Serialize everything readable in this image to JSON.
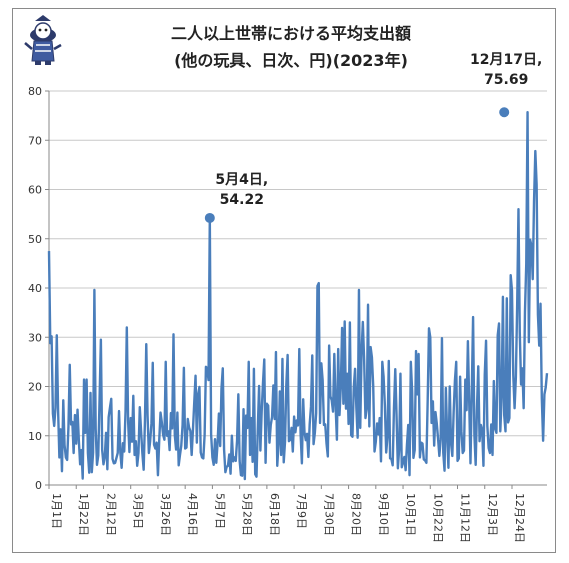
{
  "chart_data": {
    "type": "line",
    "title": "二人以上世帯における平均支出額",
    "subtitle": "(他の玩具、日次、円)(2023年)",
    "xlabel": "",
    "ylabel": "",
    "ylim": [
      0,
      80
    ],
    "yticks": [
      0,
      10,
      20,
      30,
      40,
      50,
      60,
      70,
      80
    ],
    "grid": "horizontal",
    "line_color": "#4a7ebb",
    "x_tick_labels": [
      "1月1日",
      "1月22日",
      "2月12日",
      "3月5日",
      "3月26日",
      "4月16日",
      "5月7日",
      "5月28日",
      "6月18日",
      "7月9日",
      "7月30日",
      "8月20日",
      "9月10日",
      "10月1日",
      "10月22日",
      "11月12日",
      "12月3日",
      "12月24日"
    ],
    "annotations": [
      {
        "day": 124,
        "value": 54.22,
        "line1": "5月4日,",
        "line2": "54.22"
      },
      {
        "day": 351,
        "value": 75.69,
        "line1": "12月17日,",
        "line2": "75.69"
      }
    ],
    "series": [
      {
        "values": [
          47.5,
          28.8,
          30.2,
          14.5,
          12.0,
          15.7,
          30.4,
          15.3,
          5.6,
          11.3,
          2.8,
          17.2,
          8.1,
          5.6,
          5.1,
          11.8,
          24.4,
          12.3,
          12.8,
          6.5,
          14.2,
          8.4,
          15.3,
          9.1,
          4.2,
          7.1,
          1.3,
          21.4,
          10.6,
          21.4,
          6.5,
          2.5,
          18.7,
          2.6,
          6.6,
          39.6,
          11.4,
          4.1,
          6.0,
          17.6,
          29.5,
          7.1,
          4.2,
          5.7,
          10.6,
          3.2,
          13.8,
          15.7,
          17.5,
          5.3,
          4.4,
          4.5,
          5.5,
          6.5,
          15.0,
          6.6,
          3.5,
          8.5,
          6.8,
          14.9,
          32.0,
          13.0,
          6.7,
          13.6,
          8.8,
          18.1,
          6.1,
          8.9,
          3.9,
          6.5,
          15.8,
          11.0,
          6.4,
          3.1,
          13.2,
          28.6,
          14.1,
          6.5,
          8.9,
          12.5,
          24.8,
          8.2,
          7.4,
          8.6,
          2.0,
          9.1,
          14.7,
          12.7,
          10.2,
          9.2,
          25.0,
          10.0,
          10.9,
          7.1,
          14.6,
          11.5,
          30.6,
          10.1,
          7.2,
          14.7,
          4.0,
          6.1,
          8.0,
          12.2,
          23.8,
          7.4,
          7.6,
          13.4,
          11.7,
          11.0,
          6.1,
          11.2,
          16.8,
          22.2,
          8.6,
          18.4,
          19.9,
          6.6,
          5.6,
          5.4,
          10.2,
          24.0,
          23.7,
          21.3,
          54.2,
          10.3,
          5.6,
          4.1,
          9.3,
          4.5,
          8.6,
          14.5,
          7.9,
          19.6,
          23.7,
          7.2,
          2.6,
          3.7,
          3.9,
          6.2,
          2.3,
          10.0,
          4.8,
          5.6,
          4.9,
          9.0,
          18.4,
          4.9,
          2.0,
          1.9,
          15.4,
          1.2,
          14.1,
          11.6,
          25.0,
          6.1,
          13.6,
          4.7,
          23.6,
          2.2,
          1.7,
          11.5,
          20.1,
          7.0,
          15.0,
          20.7,
          25.5,
          4.5,
          16.5,
          16.1,
          8.6,
          12.2,
          13.8,
          20.2,
          13.4,
          27.0,
          3.9,
          8.4,
          19.0,
          6.1,
          25.6,
          4.6,
          8.8,
          20.4,
          26.4,
          8.9,
          9.2,
          11.6,
          6.8,
          13.9,
          10.7,
          13.1,
          12.1,
          27.6,
          10.5,
          4.4,
          17.4,
          10.7,
          9.1,
          10.4,
          5.7,
          12.3,
          15.9,
          26.3,
          8.3,
          10.6,
          14.6,
          40.4,
          41.0,
          12.6,
          24.7,
          21.3,
          12.2,
          12.3,
          8.4,
          5.8,
          28.3,
          18.0,
          17.2,
          14.9,
          26.6,
          16.0,
          9.2,
          27.6,
          14.2,
          19.9,
          31.9,
          16.5,
          33.2,
          15.5,
          22.6,
          12.4,
          33.0,
          10.1,
          9.8,
          19.8,
          23.6,
          15.7,
          9.6,
          39.6,
          11.6,
          26.9,
          33.1,
          25.4,
          13.6,
          15.4,
          36.6,
          11.9,
          28.0,
          25.9,
          20.1,
          6.8,
          8.8,
          12.5,
          10.3,
          13.6,
          4.8,
          25.0,
          22.0,
          16.1,
          6.6,
          9.8,
          25.2,
          5.4,
          5.3,
          4.0,
          15.6,
          23.5,
          14.1,
          3.4,
          7.3,
          22.6,
          3.6,
          4.6,
          5.7,
          3.0,
          8.1,
          12.2,
          2.0,
          25.0,
          19.1,
          5.5,
          7.1,
          27.2,
          18.4,
          26.6,
          5.6,
          8.6,
          8.4,
          5.2,
          5.0,
          4.5,
          17.3,
          31.8,
          30.0,
          12.6,
          17.0,
          8.0,
          14.8,
          12.5,
          9.4,
          5.9,
          9.3,
          29.8,
          6.6,
          2.9,
          19.7,
          10.2,
          3.5,
          20.0,
          8.5,
          5.9,
          14.7,
          21.2,
          25.0,
          4.9,
          5.4,
          22.0,
          10.9,
          6.5,
          7.0,
          21.4,
          15.2,
          29.2,
          17.0,
          4.4,
          19.0,
          34.1,
          10.3,
          4.1,
          15.6,
          24.1,
          8.9,
          12.2,
          11.2,
          3.9,
          22.4,
          29.3,
          12.0,
          7.5,
          6.5,
          12.3,
          6.1,
          21.1,
          11.5,
          10.6,
          30.4,
          32.8,
          10.9,
          17.8,
          38.2,
          14.2,
          10.9,
          37.9,
          12.7,
          13.6,
          42.6,
          39.5,
          22.3,
          15.6,
          21.9,
          36.5,
          56.0,
          31.0,
          20.4,
          23.7,
          15.6,
          35.1,
          44.9,
          75.7,
          29.0,
          49.8,
          48.6,
          41.8,
          57.6,
          67.8,
          61.0,
          34.6,
          28.3,
          36.8,
          17.6,
          9.0,
          18.4,
          19.8,
          22.7
        ]
      }
    ]
  },
  "mascot": {
    "name": "mascot-logo"
  }
}
